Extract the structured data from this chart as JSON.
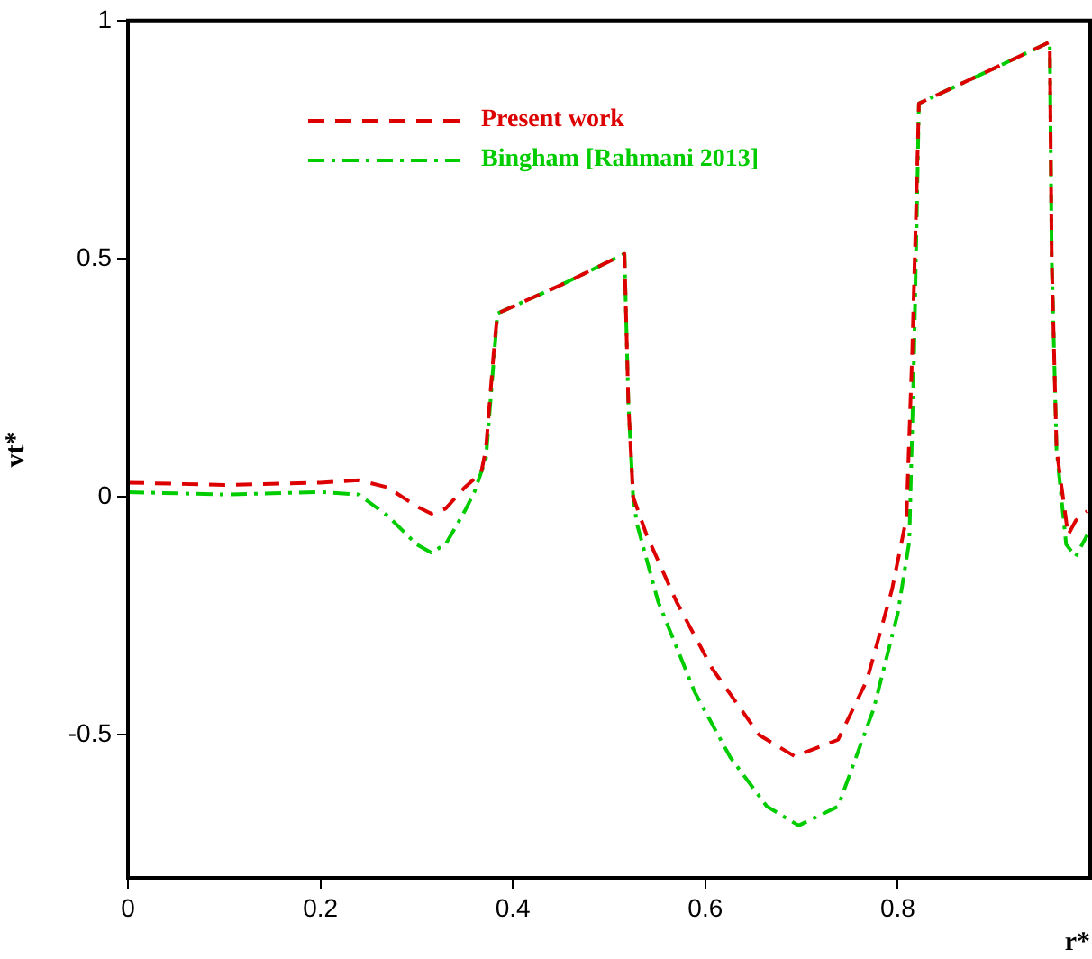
{
  "chart_data": {
    "type": "line",
    "xlabel": "r*",
    "ylabel": "vt*",
    "xlim": [
      0,
      1
    ],
    "ylim": [
      -0.8,
      1
    ],
    "xticks": [
      0,
      0.2,
      0.4,
      0.6,
      0.8
    ],
    "yticks": [
      -0.5,
      0,
      0.5,
      1
    ],
    "grid": false,
    "legend": "top left",
    "marker": "none",
    "series": [
      {
        "name": "Present work",
        "color": "#dd0000",
        "line_style": "dashed",
        "x": [
          0,
          0.1,
          0.2,
          0.24,
          0.27,
          0.3,
          0.315,
          0.33,
          0.35,
          0.367,
          0.372,
          0.38,
          0.384,
          0.45,
          0.516,
          0.52,
          0.525,
          0.539,
          0.57,
          0.607,
          0.656,
          0.693,
          0.738,
          0.768,
          0.794,
          0.809,
          0.815,
          0.822,
          0.89,
          0.958,
          0.96,
          0.965,
          0.977,
          0.985,
          0.997
        ],
        "values": [
          0.03,
          0.025,
          0.03,
          0.035,
          0.02,
          -0.02,
          -0.035,
          -0.025,
          0.02,
          0.05,
          0.1,
          0.3,
          0.385,
          0.445,
          0.51,
          0.2,
          0.0,
          -0.08,
          -0.22,
          -0.36,
          -0.5,
          -0.545,
          -0.51,
          -0.385,
          -0.195,
          -0.045,
          0.3,
          0.826,
          0.89,
          0.955,
          0.5,
          0.1,
          -0.08,
          -0.05,
          -0.03
        ]
      },
      {
        "name": "Bingham [Rahmani 2013]",
        "color": "#00cc00",
        "line_style": "dashdot",
        "x": [
          0,
          0.1,
          0.2,
          0.24,
          0.27,
          0.3,
          0.315,
          0.33,
          0.35,
          0.36,
          0.372,
          0.384,
          0.45,
          0.516,
          0.52,
          0.525,
          0.529,
          0.551,
          0.589,
          0.626,
          0.664,
          0.697,
          0.738,
          0.775,
          0.8,
          0.812,
          0.817,
          0.822,
          0.89,
          0.958,
          0.96,
          0.965,
          0.975,
          0.985,
          0.997
        ],
        "values": [
          0.01,
          0.005,
          0.01,
          0.005,
          -0.04,
          -0.1,
          -0.117,
          -0.1,
          -0.03,
          0.01,
          0.08,
          0.385,
          0.445,
          0.51,
          0.2,
          0.0,
          -0.057,
          -0.22,
          -0.41,
          -0.547,
          -0.65,
          -0.69,
          -0.65,
          -0.445,
          -0.245,
          -0.094,
          0.3,
          0.826,
          0.89,
          0.955,
          0.5,
          0.1,
          -0.1,
          -0.125,
          -0.08
        ]
      }
    ]
  }
}
